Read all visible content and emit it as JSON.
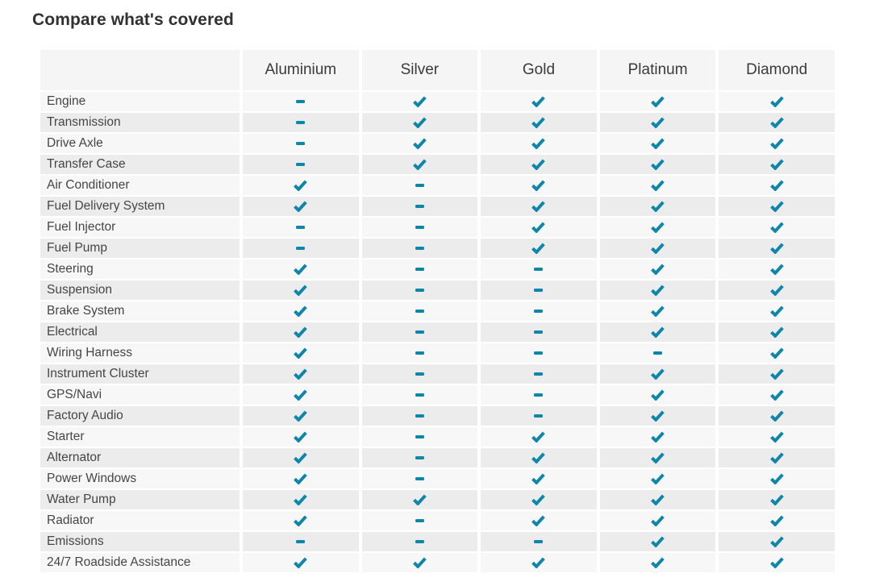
{
  "page": {
    "title": "Compare what's covered"
  },
  "icons": {
    "check_color": "#0e86aa",
    "dash_color": "#0e86aa"
  },
  "colors": {
    "row_light": "#f7f7f7",
    "row_dark": "#ececec",
    "header_bg": "#f5f5f5"
  },
  "table": {
    "plans": [
      "Aluminium",
      "Silver",
      "Gold",
      "Platinum",
      "Diamond"
    ],
    "rows": [
      {
        "label": "Engine",
        "covered": [
          false,
          true,
          true,
          true,
          true
        ]
      },
      {
        "label": "Transmission",
        "covered": [
          false,
          true,
          true,
          true,
          true
        ]
      },
      {
        "label": "Drive Axle",
        "covered": [
          false,
          true,
          true,
          true,
          true
        ]
      },
      {
        "label": "Transfer Case",
        "covered": [
          false,
          true,
          true,
          true,
          true
        ]
      },
      {
        "label": "Air Conditioner",
        "covered": [
          true,
          false,
          true,
          true,
          true
        ]
      },
      {
        "label": "Fuel Delivery System",
        "covered": [
          true,
          false,
          true,
          true,
          true
        ]
      },
      {
        "label": "Fuel Injector",
        "covered": [
          false,
          false,
          true,
          true,
          true
        ]
      },
      {
        "label": "Fuel Pump",
        "covered": [
          false,
          false,
          true,
          true,
          true
        ]
      },
      {
        "label": "Steering",
        "covered": [
          true,
          false,
          false,
          true,
          true
        ]
      },
      {
        "label": "Suspension",
        "covered": [
          true,
          false,
          false,
          true,
          true
        ]
      },
      {
        "label": "Brake System",
        "covered": [
          true,
          false,
          false,
          true,
          true
        ]
      },
      {
        "label": "Electrical",
        "covered": [
          true,
          false,
          false,
          true,
          true
        ]
      },
      {
        "label": "Wiring Harness",
        "covered": [
          true,
          false,
          false,
          false,
          true
        ]
      },
      {
        "label": "Instrument Cluster",
        "covered": [
          true,
          false,
          false,
          true,
          true
        ]
      },
      {
        "label": "GPS/Navi",
        "covered": [
          true,
          false,
          false,
          true,
          true
        ]
      },
      {
        "label": "Factory Audio",
        "covered": [
          true,
          false,
          false,
          true,
          true
        ]
      },
      {
        "label": "Starter",
        "covered": [
          true,
          false,
          true,
          true,
          true
        ]
      },
      {
        "label": "Alternator",
        "covered": [
          true,
          false,
          true,
          true,
          true
        ]
      },
      {
        "label": "Power Windows",
        "covered": [
          true,
          false,
          true,
          true,
          true
        ]
      },
      {
        "label": "Water Pump",
        "covered": [
          true,
          true,
          true,
          true,
          true
        ]
      },
      {
        "label": "Radiator",
        "covered": [
          true,
          false,
          true,
          true,
          true
        ]
      },
      {
        "label": "Emissions",
        "covered": [
          false,
          false,
          false,
          true,
          true
        ]
      },
      {
        "label": "24/7 Roadside Assistance",
        "covered": [
          true,
          true,
          true,
          true,
          true
        ]
      }
    ]
  }
}
